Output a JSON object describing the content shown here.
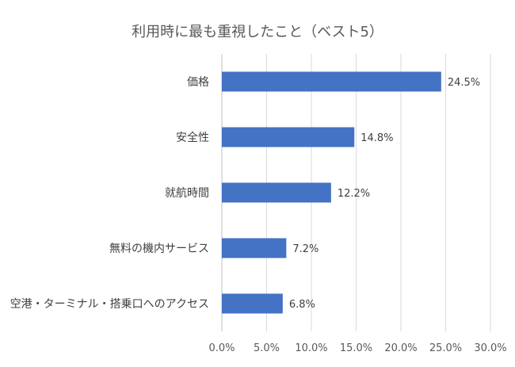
{
  "chart_data": {
    "type": "bar",
    "orientation": "horizontal",
    "title": "利用時に最も重視したこと（ベスト5）",
    "categories": [
      "価格",
      "安全性",
      "就航時間",
      "無料の機内サービス",
      "空港・ターミナル・搭乗口へのアクセス"
    ],
    "values": [
      24.5,
      14.8,
      12.2,
      7.2,
      6.8
    ],
    "data_labels": [
      "24.5%",
      "14.8%",
      "12.2%",
      "7.2%",
      "6.8%"
    ],
    "xlim": [
      0,
      30
    ],
    "xticks": [
      0,
      5,
      10,
      15,
      20,
      25,
      30
    ],
    "xtick_labels": [
      "0.0%",
      "5.0%",
      "10.0%",
      "15.0%",
      "20.0%",
      "25.0%",
      "30.0%"
    ],
    "xlabel": "",
    "ylabel": "",
    "grid": "vertical",
    "legend": "none",
    "bar_color": "#4472c4"
  }
}
